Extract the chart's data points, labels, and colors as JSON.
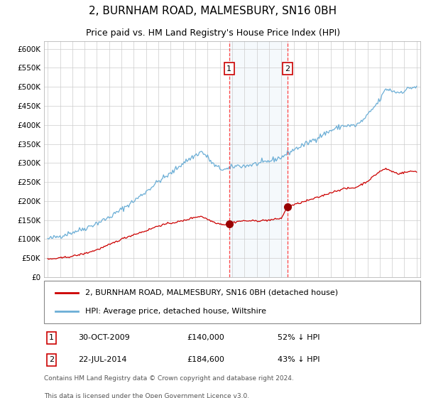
{
  "title": "2, BURNHAM ROAD, MALMESBURY, SN16 0BH",
  "subtitle": "Price paid vs. HM Land Registry's House Price Index (HPI)",
  "legend_line1": "2, BURNHAM ROAD, MALMESBURY, SN16 0BH (detached house)",
  "legend_line2": "HPI: Average price, detached house, Wiltshire",
  "footnote1": "Contains HM Land Registry data © Crown copyright and database right 2024.",
  "footnote2": "This data is licensed under the Open Government Licence v3.0.",
  "transaction1_date": "30-OCT-2009",
  "transaction1_price": 140000,
  "transaction1_label": "1",
  "transaction1_pct": "52% ↓ HPI",
  "transaction2_date": "22-JUL-2014",
  "transaction2_price": 184600,
  "transaction2_label": "2",
  "transaction2_pct": "43% ↓ HPI",
  "hpi_color": "#6baed6",
  "price_color": "#cc0000",
  "point_color": "#990000",
  "vline_color": "#ff4444",
  "shade_color": "#d8e8f5",
  "grid_color": "#cccccc",
  "ylim_max": 620000,
  "ylim_min": 0,
  "yticks": [
    0,
    50000,
    100000,
    150000,
    200000,
    250000,
    300000,
    350000,
    400000,
    450000,
    500000,
    550000,
    600000
  ],
  "xlim_start": 1994.7,
  "xlim_end": 2025.3,
  "title_fontsize": 11,
  "subtitle_fontsize": 9,
  "axis_fontsize": 7.5,
  "legend_fontsize": 8,
  "footnote_fontsize": 6.5,
  "hpi_anchors_x": [
    1995.0,
    1996.0,
    1997.0,
    1998.0,
    1999.0,
    2000.0,
    2001.0,
    2002.0,
    2003.0,
    2004.0,
    2005.0,
    2006.0,
    2007.0,
    2007.5,
    2008.0,
    2008.5,
    2009.0,
    2009.5,
    2009.83,
    2010.0,
    2010.5,
    2011.0,
    2011.5,
    2012.0,
    2012.5,
    2013.0,
    2013.5,
    2014.0,
    2014.5,
    2015.0,
    2016.0,
    2017.0,
    2018.0,
    2019.0,
    2020.0,
    2020.5,
    2021.0,
    2021.5,
    2022.0,
    2022.5,
    2023.0,
    2023.5,
    2024.0,
    2024.5,
    2025.0
  ],
  "hpi_anchors_y": [
    100000,
    108000,
    118000,
    128000,
    142000,
    157000,
    178000,
    200000,
    225000,
    252000,
    272000,
    300000,
    320000,
    330000,
    315000,
    295000,
    285000,
    283000,
    285000,
    290000,
    293000,
    292000,
    295000,
    298000,
    300000,
    305000,
    310000,
    315000,
    325000,
    335000,
    350000,
    368000,
    385000,
    398000,
    398000,
    408000,
    425000,
    445000,
    465000,
    495000,
    490000,
    485000,
    490000,
    498000,
    500000
  ],
  "price_anchors_x": [
    1995.0,
    1996.0,
    1997.0,
    1998.0,
    1999.0,
    2000.0,
    2001.0,
    2002.0,
    2003.0,
    2004.0,
    2005.0,
    2006.0,
    2007.0,
    2007.5,
    2008.0,
    2008.5,
    2009.0,
    2009.5,
    2009.83,
    2010.0,
    2010.5,
    2011.0,
    2012.0,
    2013.0,
    2013.5,
    2014.0,
    2014.5,
    2015.0,
    2016.0,
    2017.0,
    2018.0,
    2019.0,
    2020.0,
    2021.0,
    2021.5,
    2022.0,
    2022.5,
    2023.0,
    2023.5,
    2024.0,
    2024.5,
    2025.0
  ],
  "price_anchors_y": [
    47000,
    50000,
    55000,
    62000,
    72000,
    85000,
    100000,
    112000,
    122000,
    135000,
    142000,
    148000,
    158000,
    160000,
    152000,
    145000,
    140000,
    138000,
    140000,
    143000,
    147000,
    148000,
    148000,
    150000,
    152000,
    155000,
    184600,
    190000,
    200000,
    210000,
    222000,
    232000,
    235000,
    252000,
    265000,
    278000,
    285000,
    278000,
    272000,
    275000,
    278000,
    278000
  ]
}
